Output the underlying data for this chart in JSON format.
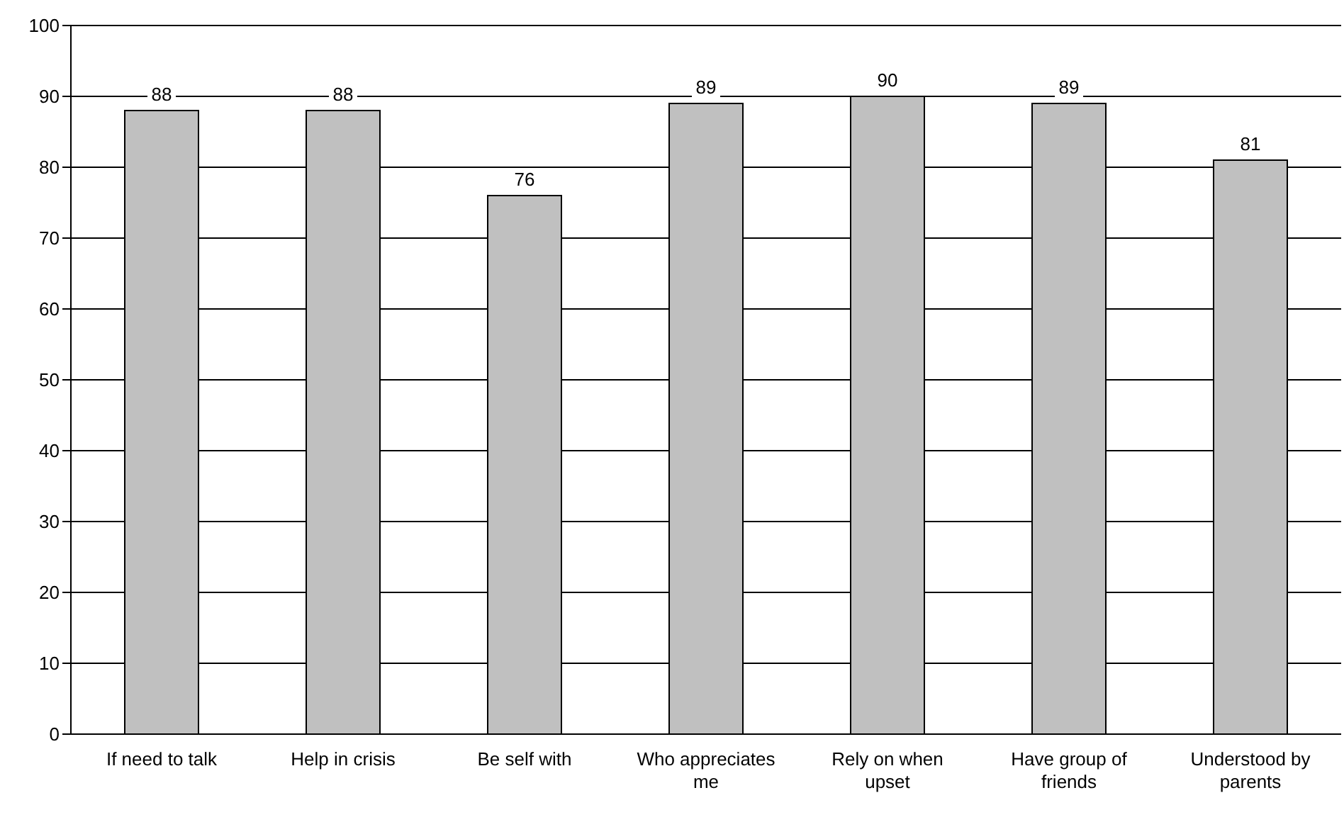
{
  "chart_data": {
    "type": "bar",
    "categories": [
      "If need to talk",
      "Help in crisis",
      "Be self with",
      "Who appreciates me",
      "Rely on when upset",
      "Have group of friends",
      "Understood by parents"
    ],
    "values": [
      88,
      88,
      76,
      89,
      90,
      89,
      81
    ],
    "color": "#c0c0c0",
    "ylim": [
      0,
      100
    ],
    "yticks": [
      0,
      10,
      20,
      30,
      40,
      50,
      60,
      70,
      80,
      90,
      100
    ],
    "grid": "y",
    "data_labels": true
  }
}
